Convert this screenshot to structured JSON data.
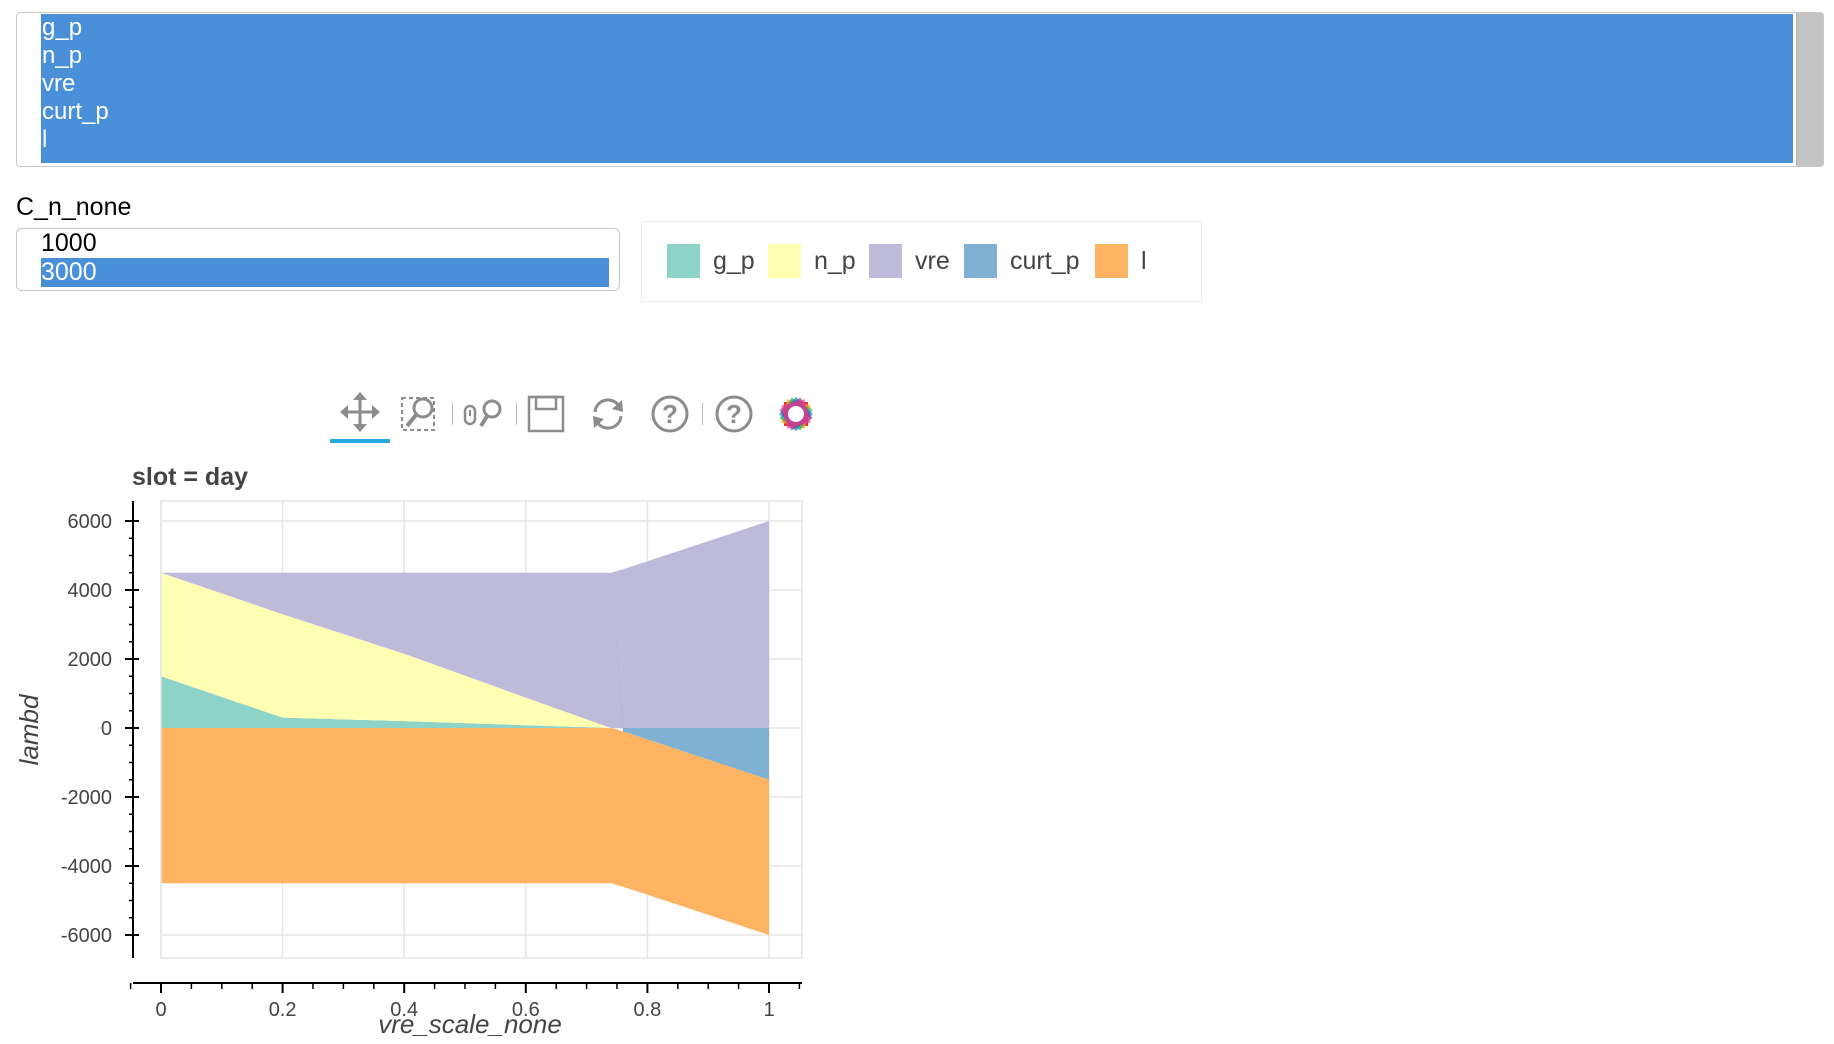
{
  "variable_select": {
    "options": [
      "g_p",
      "n_p",
      "vre",
      "curt_p",
      "l"
    ]
  },
  "cn_select": {
    "label": "C_n_none",
    "options": [
      "1000",
      "3000"
    ],
    "selected": "3000"
  },
  "toolbar": {
    "tools": [
      {
        "name": "pan-tool-icon",
        "active": true
      },
      {
        "name": "box-zoom-tool-icon",
        "active": false
      },
      {
        "name": "wheel-zoom-tool-icon",
        "active": false
      },
      {
        "name": "save-tool-icon",
        "active": false
      },
      {
        "name": "reset-tool-icon",
        "active": false
      },
      {
        "name": "hover-help-icon",
        "active": false
      },
      {
        "name": "help-icon",
        "active": false
      },
      {
        "name": "bokeh-logo-icon",
        "active": false
      }
    ]
  },
  "chart_data": {
    "type": "area",
    "title": "slot = day",
    "xlabel": "vre_scale_none",
    "ylabel": "lambd",
    "xlim": [
      -0.04,
      1.05
    ],
    "ylim": [
      -6500,
      6400
    ],
    "x_ticks": [
      0,
      0.2,
      0.4,
      0.6,
      0.8,
      1
    ],
    "y_ticks": [
      6000,
      4000,
      2000,
      0,
      -2000,
      -4000,
      -6000
    ],
    "x_tick_labels": [
      "0",
      "0.2",
      "0.4",
      "0.6",
      "0.8",
      "1"
    ],
    "y_tick_labels": [
      "6000",
      "4000",
      "2000",
      "0",
      "-2000",
      "-4000",
      "-6000"
    ],
    "grid": true,
    "legend": {
      "placement": "top",
      "entries": [
        "g_p",
        "n_p",
        "vre",
        "curt_p",
        "l"
      ]
    },
    "x": [
      0,
      0.2,
      0.4,
      0.6,
      0.74,
      0.76,
      1.0
    ],
    "series": [
      {
        "name": "g_p",
        "color": "#8dd3c7",
        "values": [
          1500,
          300,
          200,
          80,
          0,
          0,
          0
        ]
      },
      {
        "name": "n_p",
        "color": "#ffffb3",
        "values": [
          3000,
          3000,
          1950,
          800,
          0,
          0,
          0
        ]
      },
      {
        "name": "vre",
        "color": "#bebada",
        "values": [
          0,
          1200,
          2350,
          3620,
          4500,
          4600,
          6000
        ]
      },
      {
        "name": "curt_p",
        "color": "#80b1d3",
        "values": [
          0,
          0,
          0,
          0,
          0,
          -100,
          -1500
        ]
      },
      {
        "name": "l",
        "color": "#fdb462",
        "values": [
          -4500,
          -4500,
          -4500,
          -4500,
          -4500,
          -4500,
          -4500
        ]
      }
    ]
  }
}
